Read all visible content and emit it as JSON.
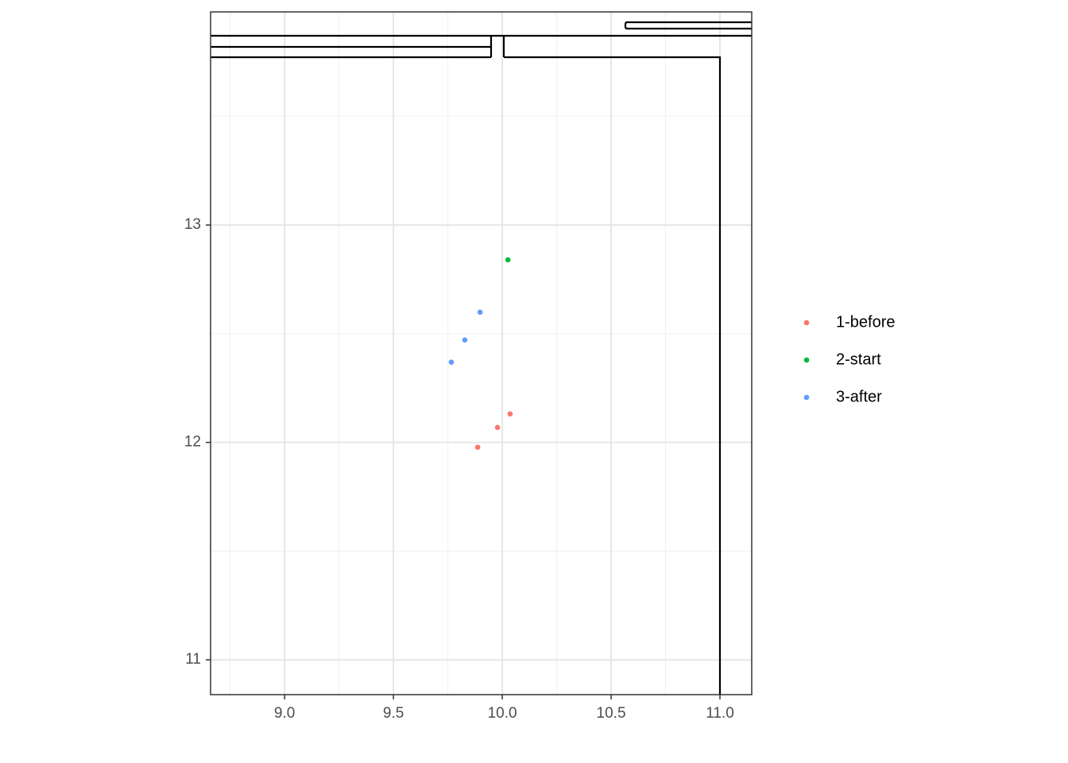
{
  "chart_data": {
    "type": "scatter",
    "xlim": [
      8.66,
      11.146
    ],
    "ylim": [
      10.84,
      13.98
    ],
    "xticks": [
      {
        "value": 9,
        "label": "9.0"
      },
      {
        "value": 9.5,
        "label": "9.5"
      },
      {
        "value": 10,
        "label": "10.0"
      },
      {
        "value": 10.5,
        "label": "10.5"
      },
      {
        "value": 11,
        "label": "11.0"
      }
    ],
    "yticks": [
      11,
      12,
      13
    ],
    "grid": true,
    "legend": "right",
    "series": [
      {
        "name": "1-before",
        "color": "#F8766D",
        "x": [
          9.887,
          9.978,
          10.036
        ],
        "values": [
          11.978,
          12.069,
          12.131
        ]
      },
      {
        "name": "2-start",
        "color": "#00BA38",
        "x": [
          10.026
        ],
        "values": [
          12.84
        ]
      },
      {
        "name": "3-after",
        "color": "#619CFF",
        "x": [
          9.898,
          9.828,
          9.766
        ],
        "values": [
          12.599,
          12.471,
          12.369
        ]
      }
    ]
  }
}
